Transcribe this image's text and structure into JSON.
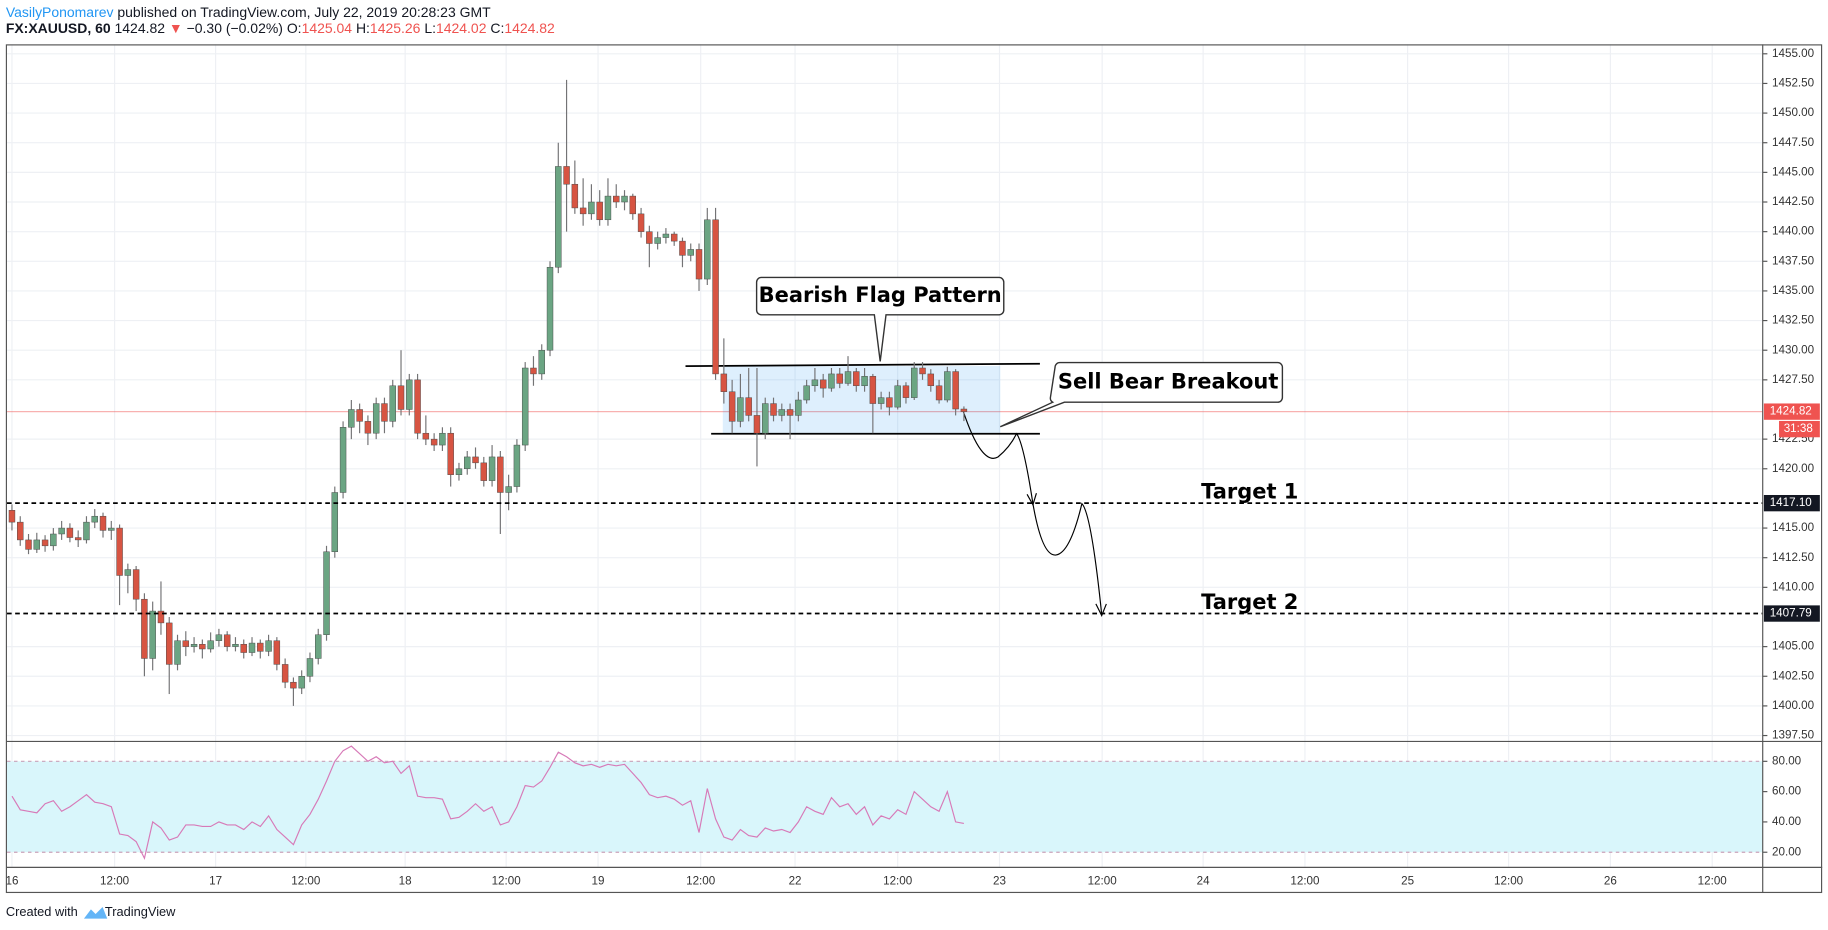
{
  "header": {
    "author": "VasilyPonomarev",
    "published": "published on TradingView.com, July 22, 2019 20:28:23 GMT",
    "symbol": "FX:XAUUSD, 60",
    "last": "1424.82",
    "arrow": "▼",
    "change": "−0.30 (−0.02%)",
    "ohlc": [
      {
        "label": "O:",
        "value": "1425.04"
      },
      {
        "label": "H:",
        "value": "1425.26"
      },
      {
        "label": "L:",
        "value": "1424.02"
      },
      {
        "label": "C:",
        "value": "1424.82"
      }
    ]
  },
  "chart_data": [
    {
      "type": "candlestick",
      "up_color": "#6ba583",
      "down_color": "#d75442",
      "wick_color": "#737375",
      "grid": true,
      "xlim": [
        -0.6,
        211.5
      ],
      "ylim": [
        1397.0,
        1455.8
      ],
      "yticks": [
        {
          "value": 1397.5,
          "label": "1397.50"
        },
        {
          "value": 1400,
          "label": "1400.00"
        },
        {
          "value": 1402.5,
          "label": "1402.50"
        },
        {
          "value": 1405,
          "label": "1405.00"
        },
        {
          "value": 1410,
          "label": "1410.00"
        },
        {
          "value": 1412.5,
          "label": "1412.50"
        },
        {
          "value": 1415,
          "label": "1415.00"
        },
        {
          "value": 1420,
          "label": "1420.00"
        },
        {
          "value": 1422.5,
          "label": "1422.50"
        },
        {
          "value": 1427.5,
          "label": "1427.50"
        },
        {
          "value": 1430,
          "label": "1430.00"
        },
        {
          "value": 1432.5,
          "label": "1432.50"
        },
        {
          "value": 1435,
          "label": "1435.00"
        },
        {
          "value": 1437.5,
          "label": "1437.50"
        },
        {
          "value": 1440,
          "label": "1440.00"
        },
        {
          "value": 1442.5,
          "label": "1442.50"
        },
        {
          "value": 1445,
          "label": "1445.00"
        },
        {
          "value": 1447.5,
          "label": "1447.50"
        },
        {
          "value": 1450,
          "label": "1450.00"
        },
        {
          "value": 1452.5,
          "label": "1452.50"
        },
        {
          "value": 1455,
          "label": "1455.00"
        }
      ],
      "hlines": [
        {
          "name": "Target 1",
          "value": 1417.1,
          "label": "1417.10"
        },
        {
          "name": "Target 2",
          "value": 1407.79,
          "label": "1407.79"
        }
      ],
      "last_price": {
        "value": 1424.82,
        "label": "1424.82",
        "color": "#ef5350"
      },
      "countdown": "31:38",
      "annotations": [
        "Bearish Flag Pattern",
        "Sell Bear Breakout"
      ],
      "x": [
        0,
        1,
        2,
        3,
        4,
        5,
        6,
        7,
        8,
        9,
        10,
        11,
        12,
        13,
        14,
        15,
        16,
        17,
        18,
        19,
        20,
        21,
        22,
        23,
        24,
        25,
        26,
        27,
        28,
        29,
        30,
        31,
        32,
        33,
        34,
        35,
        36,
        37,
        38,
        39,
        40,
        41,
        42,
        43,
        44,
        45,
        46,
        47,
        48,
        49,
        50,
        51,
        52,
        53,
        54,
        55,
        56,
        57,
        58,
        59,
        60,
        61,
        62,
        63,
        64,
        65,
        66,
        67,
        68,
        69,
        70,
        71,
        72,
        73,
        74,
        75,
        76,
        77,
        78,
        79,
        80,
        81,
        82,
        83,
        84,
        85,
        86,
        87,
        88,
        89,
        90,
        91,
        92,
        93,
        94,
        95,
        96,
        97,
        98,
        99,
        100,
        101,
        102,
        103,
        104,
        105,
        106,
        107,
        108,
        109,
        110,
        111,
        112,
        113,
        114,
        115
      ],
      "ohlc": [
        [
          1416.5,
          1417.0,
          1414.8,
          1415.5
        ],
        [
          1415.5,
          1416.0,
          1413.5,
          1414.0
        ],
        [
          1414.0,
          1414.5,
          1412.8,
          1413.2
        ],
        [
          1413.2,
          1414.6,
          1412.9,
          1414.0
        ],
        [
          1414.0,
          1414.4,
          1413.0,
          1413.5
        ],
        [
          1413.5,
          1415.0,
          1413.1,
          1414.5
        ],
        [
          1414.5,
          1415.6,
          1414.0,
          1415.0
        ],
        [
          1415.0,
          1415.4,
          1413.8,
          1414.2
        ],
        [
          1414.2,
          1414.8,
          1413.4,
          1414.0
        ],
        [
          1414.0,
          1416.0,
          1413.7,
          1415.5
        ],
        [
          1415.5,
          1416.6,
          1415.0,
          1416.0
        ],
        [
          1416.0,
          1416.3,
          1414.2,
          1414.8
        ],
        [
          1414.8,
          1415.6,
          1414.0,
          1415.0
        ],
        [
          1415.0,
          1415.3,
          1408.5,
          1411.0
        ],
        [
          1411.0,
          1412.0,
          1409.5,
          1411.5
        ],
        [
          1411.5,
          1411.8,
          1408.0,
          1409.0
        ],
        [
          1409.0,
          1409.5,
          1402.5,
          1404.0
        ],
        [
          1404.0,
          1408.8,
          1403.0,
          1408.0
        ],
        [
          1408.0,
          1410.5,
          1406.0,
          1407.0
        ],
        [
          1407.0,
          1407.5,
          1401.0,
          1403.5
        ],
        [
          1403.5,
          1406.0,
          1403.0,
          1405.5
        ],
        [
          1405.5,
          1406.3,
          1404.2,
          1405.0
        ],
        [
          1405.0,
          1405.8,
          1404.5,
          1405.2
        ],
        [
          1405.2,
          1405.6,
          1404.0,
          1404.8
        ],
        [
          1404.8,
          1406.2,
          1404.5,
          1405.5
        ],
        [
          1405.5,
          1406.5,
          1405.0,
          1406.0
        ],
        [
          1406.0,
          1406.3,
          1404.6,
          1405.0
        ],
        [
          1405.0,
          1405.8,
          1404.6,
          1405.2
        ],
        [
          1405.2,
          1405.6,
          1404.0,
          1404.5
        ],
        [
          1404.5,
          1405.8,
          1404.2,
          1405.3
        ],
        [
          1405.3,
          1405.6,
          1404.0,
          1404.6
        ],
        [
          1404.6,
          1406.0,
          1404.2,
          1405.5
        ],
        [
          1405.5,
          1405.8,
          1403.0,
          1403.5
        ],
        [
          1403.5,
          1404.0,
          1401.5,
          1402.0
        ],
        [
          1402.0,
          1402.4,
          1400.0,
          1401.5
        ],
        [
          1401.5,
          1403.0,
          1401.0,
          1402.5
        ],
        [
          1402.5,
          1404.5,
          1402.0,
          1404.0
        ],
        [
          1404.0,
          1406.5,
          1403.5,
          1406.0
        ],
        [
          1406.0,
          1413.5,
          1405.5,
          1413.0
        ],
        [
          1413.0,
          1418.5,
          1412.5,
          1418.0
        ],
        [
          1418.0,
          1424.0,
          1417.5,
          1423.5
        ],
        [
          1423.5,
          1425.8,
          1422.5,
          1425.0
        ],
        [
          1425.0,
          1425.5,
          1423.0,
          1424.0
        ],
        [
          1424.0,
          1424.5,
          1422.0,
          1423.0
        ],
        [
          1423.0,
          1426.0,
          1422.5,
          1425.5
        ],
        [
          1425.5,
          1426.0,
          1423.0,
          1424.0
        ],
        [
          1424.0,
          1427.5,
          1423.5,
          1427.0
        ],
        [
          1427.0,
          1430.0,
          1424.5,
          1425.0
        ],
        [
          1425.0,
          1428.0,
          1424.5,
          1427.5
        ],
        [
          1427.5,
          1428.0,
          1422.5,
          1423.0
        ],
        [
          1423.0,
          1424.5,
          1422.0,
          1422.5
        ],
        [
          1422.5,
          1423.0,
          1421.5,
          1422.0
        ],
        [
          1422.0,
          1423.5,
          1421.5,
          1423.0
        ],
        [
          1423.0,
          1423.5,
          1418.5,
          1419.5
        ],
        [
          1419.5,
          1420.5,
          1419.0,
          1420.0
        ],
        [
          1420.0,
          1421.5,
          1419.5,
          1421.0
        ],
        [
          1421.0,
          1421.8,
          1420.0,
          1420.5
        ],
        [
          1420.5,
          1421.0,
          1418.5,
          1419.0
        ],
        [
          1419.0,
          1422.0,
          1418.5,
          1421.0
        ],
        [
          1421.0,
          1421.5,
          1414.5,
          1418.0
        ],
        [
          1418.0,
          1419.5,
          1416.5,
          1418.5
        ],
        [
          1418.5,
          1422.5,
          1418.0,
          1422.0
        ],
        [
          1422.0,
          1429.0,
          1421.5,
          1428.5
        ],
        [
          1428.5,
          1429.5,
          1427.0,
          1428.0
        ],
        [
          1428.0,
          1430.5,
          1427.5,
          1430.0
        ],
        [
          1430.0,
          1437.5,
          1429.5,
          1437.0
        ],
        [
          1437.0,
          1447.5,
          1436.5,
          1445.5
        ],
        [
          1445.5,
          1452.8,
          1440.0,
          1444.0
        ],
        [
          1444.0,
          1446.0,
          1441.5,
          1442.0
        ],
        [
          1442.0,
          1444.5,
          1440.5,
          1441.5
        ],
        [
          1441.5,
          1444.0,
          1441.0,
          1442.5
        ],
        [
          1442.5,
          1443.5,
          1440.5,
          1441.0
        ],
        [
          1441.0,
          1444.5,
          1440.5,
          1443.0
        ],
        [
          1443.0,
          1444.0,
          1442.0,
          1442.5
        ],
        [
          1442.5,
          1443.5,
          1441.8,
          1443.0
        ],
        [
          1443.0,
          1443.2,
          1441.0,
          1441.5
        ],
        [
          1441.5,
          1442.0,
          1439.5,
          1440.0
        ],
        [
          1440.0,
          1440.5,
          1437.0,
          1439.0
        ],
        [
          1439.0,
          1440.0,
          1438.5,
          1439.5
        ],
        [
          1439.5,
          1440.3,
          1439.0,
          1439.8
        ],
        [
          1439.8,
          1440.0,
          1438.8,
          1439.2
        ],
        [
          1439.2,
          1439.5,
          1437.0,
          1438.0
        ],
        [
          1438.0,
          1439.0,
          1437.5,
          1438.5
        ],
        [
          1438.5,
          1439.0,
          1435.0,
          1436.0
        ],
        [
          1436.0,
          1442.0,
          1435.5,
          1441.0
        ],
        [
          1441.0,
          1442.0,
          1427.5,
          1428.0
        ],
        [
          1428.0,
          1431.0,
          1425.5,
          1426.5
        ],
        [
          1426.5,
          1427.5,
          1423.0,
          1424.0
        ],
        [
          1424.0,
          1428.0,
          1423.5,
          1426.0
        ],
        [
          1426.0,
          1428.5,
          1424.0,
          1424.5
        ],
        [
          1424.5,
          1428.5,
          1420.2,
          1423.0
        ],
        [
          1423.0,
          1426.0,
          1422.5,
          1425.5
        ],
        [
          1425.5,
          1426.0,
          1424.0,
          1424.5
        ],
        [
          1424.5,
          1425.5,
          1424.0,
          1425.0
        ],
        [
          1425.0,
          1425.5,
          1422.5,
          1424.5
        ],
        [
          1424.5,
          1426.5,
          1424.0,
          1425.8
        ],
        [
          1425.8,
          1427.5,
          1425.5,
          1427.0
        ],
        [
          1427.0,
          1428.5,
          1426.5,
          1427.5
        ],
        [
          1427.5,
          1428.0,
          1426.0,
          1426.8
        ],
        [
          1426.8,
          1428.5,
          1426.5,
          1428.0
        ],
        [
          1428.0,
          1428.5,
          1426.8,
          1427.2
        ],
        [
          1427.2,
          1429.5,
          1427.0,
          1428.2
        ],
        [
          1428.2,
          1428.5,
          1426.5,
          1427.0
        ],
        [
          1427.0,
          1428.5,
          1426.5,
          1427.8
        ],
        [
          1427.8,
          1428.0,
          1423.0,
          1425.5
        ],
        [
          1425.5,
          1426.5,
          1425.0,
          1426.0
        ],
        [
          1426.0,
          1426.5,
          1424.5,
          1425.2
        ],
        [
          1425.2,
          1427.5,
          1425.0,
          1427.0
        ],
        [
          1427.0,
          1427.3,
          1425.5,
          1426.0
        ],
        [
          1426.0,
          1429.0,
          1425.8,
          1428.5
        ],
        [
          1428.5,
          1429.0,
          1427.5,
          1428.0
        ],
        [
          1428.0,
          1428.4,
          1426.5,
          1427.0
        ],
        [
          1427.0,
          1427.5,
          1425.5,
          1425.8
        ],
        [
          1425.8,
          1428.6,
          1425.6,
          1428.2
        ],
        [
          1428.2,
          1428.4,
          1424.5,
          1425.04
        ],
        [
          1425.04,
          1425.26,
          1424.02,
          1424.82
        ]
      ]
    },
    {
      "type": "line",
      "color": "#d77ab8",
      "band": [
        20,
        80
      ],
      "band_color": "#d9f6fb",
      "xlim": [
        -0.6,
        211.5
      ],
      "ylim": [
        10,
        93.1
      ],
      "yticks": [
        {
          "value": 20,
          "label": "20.00"
        },
        {
          "value": 40,
          "label": "40.00"
        },
        {
          "value": 60,
          "label": "60.00"
        },
        {
          "value": 80,
          "label": "80.00"
        }
      ],
      "xticks": [
        {
          "value": 0,
          "label": "16"
        },
        {
          "value": 12.4,
          "label": "12:00"
        },
        {
          "value": 24.6,
          "label": "17"
        },
        {
          "value": 35.5,
          "label": "12:00"
        },
        {
          "value": 47.5,
          "label": "18"
        },
        {
          "value": 59.7,
          "label": "12:00"
        },
        {
          "value": 70.8,
          "label": "19"
        },
        {
          "value": 83.2,
          "label": "12:00"
        },
        {
          "value": 94.6,
          "label": "22"
        },
        {
          "value": 107,
          "label": "12:00"
        },
        {
          "value": 119.3,
          "label": "23"
        },
        {
          "value": 131.7,
          "label": "12:00"
        },
        {
          "value": 143.9,
          "label": "24"
        },
        {
          "value": 156.2,
          "label": "12:00"
        },
        {
          "value": 168.6,
          "label": "25"
        },
        {
          "value": 180.8,
          "label": "12:00"
        },
        {
          "value": 193.1,
          "label": "26"
        },
        {
          "value": 205.4,
          "label": "12:00"
        }
      ],
      "x": [
        0,
        1,
        2,
        3,
        4,
        5,
        6,
        7,
        8,
        9,
        10,
        11,
        12,
        13,
        14,
        15,
        16,
        17,
        18,
        19,
        20,
        21,
        22,
        23,
        24,
        25,
        26,
        27,
        28,
        29,
        30,
        31,
        32,
        33,
        34,
        35,
        36,
        37,
        38,
        39,
        40,
        41,
        42,
        43,
        44,
        45,
        46,
        47,
        48,
        49,
        50,
        51,
        52,
        53,
        54,
        55,
        56,
        57,
        58,
        59,
        60,
        61,
        62,
        63,
        64,
        65,
        66,
        67,
        68,
        69,
        70,
        71,
        72,
        73,
        74,
        75,
        76,
        77,
        78,
        79,
        80,
        81,
        82,
        83,
        84,
        85,
        86,
        87,
        88,
        89,
        90,
        91,
        92,
        93,
        94,
        95,
        96,
        97,
        98,
        99,
        100,
        101,
        102,
        103,
        104,
        105,
        106,
        107,
        108,
        109,
        110,
        111,
        112,
        113,
        114,
        115
      ],
      "values": [
        57,
        48,
        47,
        46,
        52,
        54,
        47,
        50,
        54,
        58,
        53,
        52,
        50,
        32,
        31,
        27,
        16,
        40,
        36,
        28,
        30,
        38,
        38,
        37,
        37,
        40,
        38,
        38,
        35,
        40,
        37,
        44,
        35,
        30,
        25,
        38,
        45,
        55,
        67,
        80,
        87,
        90,
        85,
        80,
        83,
        79,
        80,
        72,
        77,
        57,
        56,
        56,
        55,
        42,
        43,
        47,
        52,
        47,
        50,
        38,
        40,
        50,
        64,
        63,
        67,
        76,
        86,
        83,
        79,
        77,
        78,
        76,
        78,
        77,
        78,
        72,
        66,
        58,
        56,
        57,
        55,
        51,
        54,
        33,
        62,
        42,
        30,
        28,
        35,
        31,
        30,
        36,
        34,
        35,
        33,
        40,
        50,
        47,
        45,
        56,
        50,
        52,
        45,
        50,
        38,
        44,
        42,
        48,
        45,
        60,
        55,
        50,
        47,
        60,
        40,
        39
      ]
    }
  ],
  "footer": {
    "text": "Created with",
    "brand": "TradingView"
  }
}
